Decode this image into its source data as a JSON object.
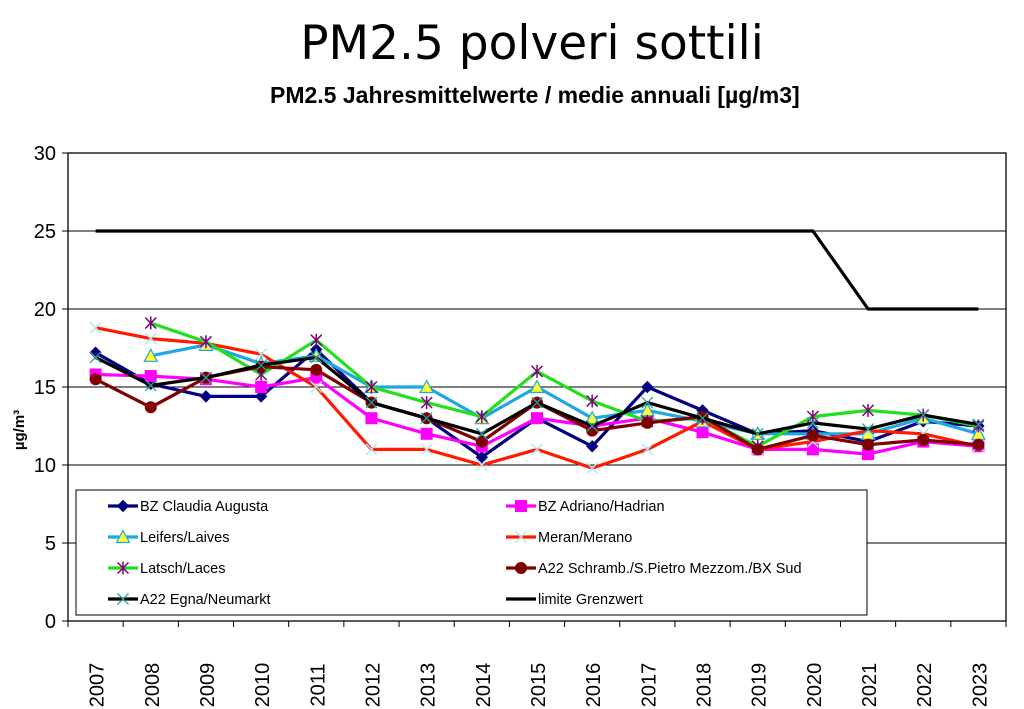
{
  "page": {
    "title": "PM2.5 polveri sottili",
    "subtitle": "PM2.5 Jahresmittelwerte / medie annuali [µg/m3]"
  },
  "chart_data": {
    "type": "line",
    "title": "PM2.5 Jahresmittelwerte / medie annuali [µg/m3]",
    "xlabel": "",
    "ylabel": "µg/m³",
    "ylim": [
      0,
      30
    ],
    "yticks": [
      0,
      5,
      10,
      15,
      20,
      25,
      30
    ],
    "grid": "horizontal",
    "legend_position": "bottom-left inside plot",
    "categories": [
      "2007",
      "2008",
      "2009",
      "2010",
      "2011",
      "2012",
      "2013",
      "2014",
      "2015",
      "2016",
      "2017",
      "2018",
      "2019",
      "2020",
      "2021",
      "2022",
      "2023"
    ],
    "series": [
      {
        "name": "BZ Claudia Augusta",
        "color": "#000080",
        "marker": "diamond",
        "values": [
          17.2,
          15.2,
          14.4,
          14.4,
          17.4,
          14.0,
          13.0,
          10.5,
          13.0,
          11.2,
          15.0,
          13.5,
          12.0,
          12.2,
          11.5,
          12.8,
          12.5
        ]
      },
      {
        "name": "BZ Adriano/Hadrian",
        "color": "#ff00ff",
        "marker": "square",
        "values": [
          15.8,
          15.7,
          15.5,
          15.0,
          15.6,
          13.0,
          12.0,
          11.2,
          13.0,
          12.5,
          13.0,
          12.1,
          11.0,
          11.0,
          10.7,
          11.5,
          11.2
        ]
      },
      {
        "name": "Leifers/Laives",
        "color": "#1ea7e1",
        "marker": "triangle",
        "values": [
          null,
          17.0,
          17.7,
          16.5,
          17.0,
          15.0,
          15.0,
          13.0,
          15.0,
          13.0,
          13.5,
          12.8,
          12.0,
          12.0,
          12.0,
          13.0,
          12.0
        ]
      },
      {
        "name": "Meran/Merano",
        "color": "#ff1a00",
        "marker": "x",
        "values": [
          18.8,
          18.1,
          17.8,
          17.1,
          15.0,
          11.0,
          11.0,
          10.0,
          11.0,
          9.8,
          11.0,
          12.8,
          11.0,
          11.5,
          12.2,
          12.0,
          11.2
        ]
      },
      {
        "name": "Latsch/Laces",
        "color": "#22e01e",
        "marker": "star",
        "values": [
          null,
          19.1,
          17.9,
          15.8,
          18.0,
          15.0,
          14.0,
          13.1,
          16.0,
          14.1,
          12.8,
          13.0,
          11.2,
          13.1,
          13.5,
          13.2,
          12.5
        ]
      },
      {
        "name": "A22 Schramb./S.Pietro Mezzom./BX Sud",
        "color": "#7f0000",
        "marker": "circle",
        "values": [
          15.5,
          13.7,
          15.6,
          16.3,
          16.1,
          14.0,
          13.0,
          11.5,
          14.0,
          12.2,
          12.7,
          13.1,
          11.0,
          11.9,
          11.3,
          11.6,
          11.3
        ]
      },
      {
        "name": "A22 Egna/Neumarkt",
        "color": "#000000",
        "marker": "plus",
        "values": [
          16.9,
          15.1,
          15.6,
          16.4,
          16.9,
          14.0,
          13.0,
          12.0,
          14.0,
          12.5,
          14.0,
          13.0,
          12.0,
          12.7,
          12.3,
          13.2,
          12.6
        ]
      },
      {
        "name": "limite Grenzwert",
        "color": "#000000",
        "marker": "none",
        "values": [
          25,
          25,
          25,
          25,
          25,
          25,
          25,
          25,
          25,
          25,
          25,
          25,
          25,
          25,
          20,
          20,
          20
        ]
      }
    ]
  }
}
